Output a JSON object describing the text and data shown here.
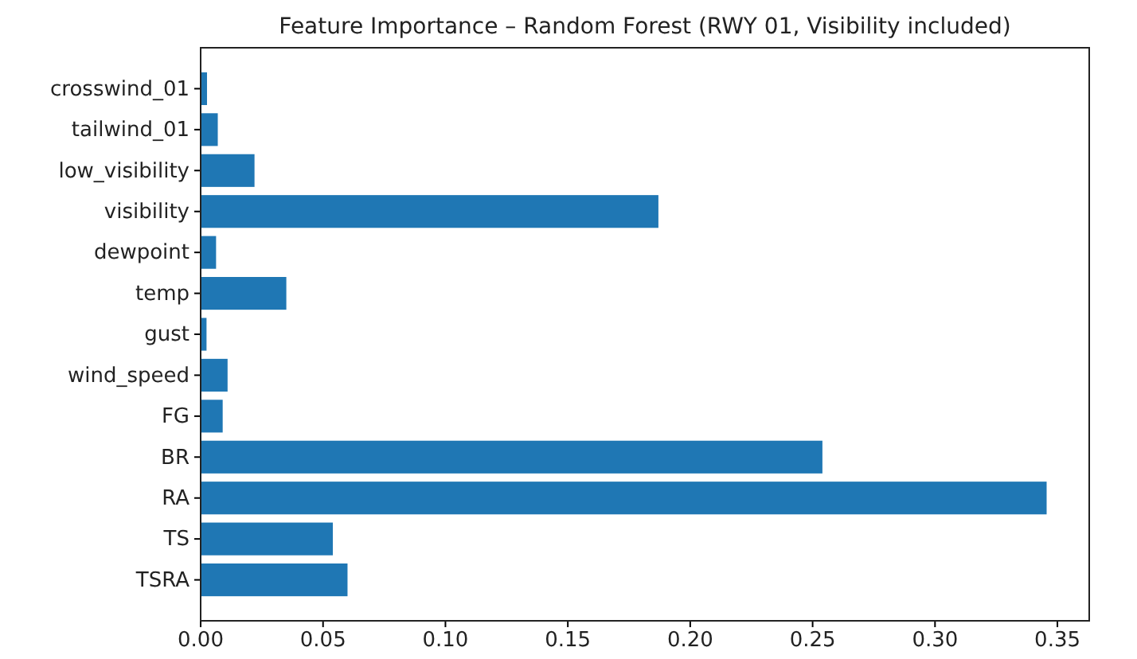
{
  "chart_data": {
    "type": "bar",
    "orientation": "horizontal",
    "title": "Feature Importance – Random Forest (RWY 01, Visibility included)",
    "categories": [
      "crosswind_01",
      "tailwind_01",
      "low_visibility",
      "visibility",
      "dewpoint",
      "temp",
      "gust",
      "wind_speed",
      "FG",
      "BR",
      "RA",
      "TS",
      "TSRA"
    ],
    "values": [
      0.0026,
      0.007,
      0.022,
      0.187,
      0.0063,
      0.035,
      0.0024,
      0.011,
      0.009,
      0.254,
      0.3456,
      0.054,
      0.06
    ],
    "color": "#1f77b4",
    "xlim": [
      0,
      0.363
    ],
    "xticks": [
      {
        "value": 0,
        "label": "0.00"
      },
      0.05,
      {
        "value": 0.1,
        "label": "0.10"
      },
      0.15,
      {
        "value": 0.2,
        "label": "0.20"
      },
      0.25,
      {
        "value": 0.3,
        "label": "0.30"
      },
      0.35
    ]
  }
}
